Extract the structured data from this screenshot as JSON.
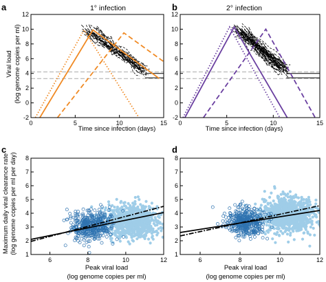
{
  "colors": {
    "orange": "#f08a24",
    "purple": "#6a3fa0",
    "light_blue": "#9fcde8",
    "dark_blue": "#2f73b0",
    "threshold_gray": "#aaaaaa",
    "axis": "#000000"
  },
  "chart_data": [
    {
      "id": "a",
      "type": "line",
      "panel_letter": "a",
      "title": "1° infection",
      "xlabel": "Time since infection (days)",
      "ylabel": "Viral load",
      "ylabel2": "(log genome copies per ml)",
      "xlim": [
        0,
        15
      ],
      "ylim": [
        -2,
        12
      ],
      "xticks": [
        0,
        5,
        10,
        15
      ],
      "yticks": [
        -2,
        0,
        2,
        4,
        6,
        8,
        10,
        12
      ],
      "threshold_lines": [
        3.3,
        4.2
      ],
      "series": [
        {
          "style": "solid",
          "color": "orange",
          "x": [
            1.0,
            7.0,
            14.5
          ],
          "y": [
            -2,
            9.9,
            3.3
          ]
        },
        {
          "style": "dotted",
          "color": "orange",
          "x": [
            0.5,
            6.0,
            12.2
          ],
          "y": [
            -2,
            9.9,
            -2
          ]
        },
        {
          "style": "dashed",
          "color": "orange",
          "x": [
            3.0,
            10.5,
            15.0
          ],
          "y": [
            -2,
            9.5,
            5.6
          ]
        },
        {
          "style": "observed",
          "color": "black",
          "x_start": [
            5.5,
            13.5
          ],
          "y_start": [
            10.3,
            3.6
          ],
          "n_traces": 24
        }
      ]
    },
    {
      "id": "b",
      "type": "line",
      "panel_letter": "b",
      "title": "2° infection",
      "xlabel": "Time since infection (days)",
      "ylabel": "",
      "xlim": [
        0,
        15
      ],
      "ylim": [
        -2,
        12
      ],
      "xticks": [
        0,
        5,
        10,
        15
      ],
      "yticks": [
        -2,
        0,
        2,
        4,
        6,
        8,
        10,
        12
      ],
      "threshold_lines": [
        3.3,
        4.2
      ],
      "series": [
        {
          "style": "solid",
          "color": "purple",
          "x": [
            0.5,
            5.8,
            11.5
          ],
          "y": [
            -2,
            10.3,
            -2
          ]
        },
        {
          "style": "dotted",
          "color": "purple",
          "x": [
            0.3,
            5.3,
            10.7
          ],
          "y": [
            -2,
            10.3,
            -2
          ]
        },
        {
          "style": "dashed",
          "color": "purple",
          "x": [
            2.5,
            9.2,
            14.5
          ],
          "y": [
            -2,
            10.0,
            -2
          ]
        },
        {
          "style": "observed",
          "color": "black",
          "x_start": [
            5.5,
            12.0
          ],
          "y_start": [
            10.5,
            3.5
          ],
          "n_traces": 40
        }
      ]
    },
    {
      "id": "c",
      "type": "scatter",
      "panel_letter": "c",
      "title": "",
      "xlabel": "Peak viral load",
      "xlabel2": "(log genome copies per ml)",
      "ylabel": "Maximum daily viral clearance rate",
      "ylabel2": "(log genome copies per ml per day)",
      "xlim": [
        5,
        12
      ],
      "ylim": [
        1,
        8
      ],
      "xticks": [
        6,
        8,
        10,
        12
      ],
      "yticks": [
        1,
        2,
        3,
        4,
        5,
        6,
        7,
        8
      ],
      "clusters": [
        {
          "color": "light_blue",
          "marker": "filled",
          "center": [
            10.3,
            3.4
          ],
          "spread": [
            0.75,
            0.6
          ],
          "n": 900
        },
        {
          "color": "dark_blue",
          "marker": "open",
          "center": [
            8.2,
            3.05
          ],
          "spread": [
            0.55,
            0.55
          ],
          "n": 420
        }
      ],
      "fit_lines": [
        {
          "style": "solid",
          "x": [
            5,
            12
          ],
          "y": [
            2.1,
            4.05
          ]
        },
        {
          "style": "dashdot",
          "x": [
            5,
            12
          ],
          "y": [
            1.95,
            4.5
          ]
        }
      ]
    },
    {
      "id": "d",
      "type": "scatter",
      "panel_letter": "d",
      "title": "",
      "xlabel": "Peak viral load",
      "xlabel2": "(log genome copies per ml)",
      "ylabel": "",
      "xlim": [
        5,
        12
      ],
      "ylim": [
        1,
        8
      ],
      "xticks": [
        6,
        8,
        10,
        12
      ],
      "yticks": [
        1,
        2,
        3,
        4,
        5,
        6,
        7,
        8
      ],
      "clusters": [
        {
          "color": "light_blue",
          "marker": "filled",
          "center": [
            10.4,
            3.9
          ],
          "spread": [
            0.7,
            0.6
          ],
          "n": 1000
        },
        {
          "color": "dark_blue",
          "marker": "open",
          "center": [
            8.3,
            3.35
          ],
          "spread": [
            0.5,
            0.5
          ],
          "n": 420
        }
      ],
      "fit_lines": [
        {
          "style": "solid",
          "x": [
            5,
            12
          ],
          "y": [
            2.6,
            4.2
          ]
        },
        {
          "style": "dashdot",
          "x": [
            5,
            12
          ],
          "y": [
            2.35,
            4.55
          ]
        }
      ]
    }
  ]
}
